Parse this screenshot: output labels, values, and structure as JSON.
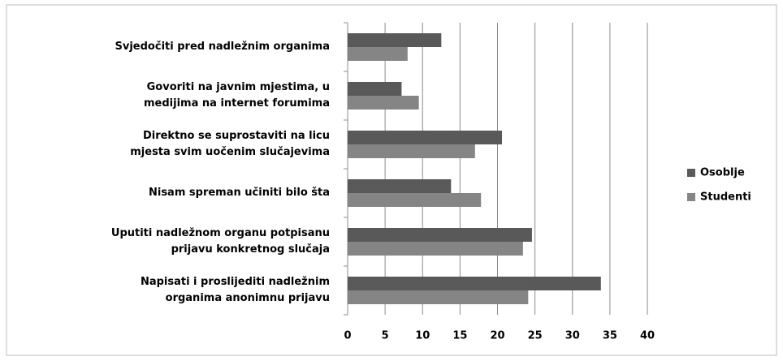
{
  "chart_data": {
    "type": "hbar",
    "categories": [
      "Svjedočiti pred nadležnim organima",
      "Govoriti na javnim mjestima, u\nmedijima na internet forumima",
      "Direktno se suprostaviti na licu\nmjesta svim uočenim slučajevima",
      "Nisam spreman učiniti bilo šta",
      "Uputiti nadležnom organu potpisanu\nprijavu konkretnog slučaja",
      "Napisati i proslijediti nadležnim\norganima anonimnu prijavu"
    ],
    "series": [
      {
        "name": "Osoblje",
        "color": "#595959",
        "values": [
          12.5,
          7.2,
          20.6,
          13.8,
          24.6,
          33.8
        ]
      },
      {
        "name": "Studenti",
        "color": "#858585",
        "values": [
          8,
          9.5,
          17,
          17.8,
          23.4,
          24.1
        ]
      }
    ],
    "xlim": [
      0,
      40
    ],
    "xticks": [
      0,
      5,
      10,
      15,
      20,
      25,
      30,
      35,
      40
    ],
    "grid": true,
    "legend": "right"
  }
}
